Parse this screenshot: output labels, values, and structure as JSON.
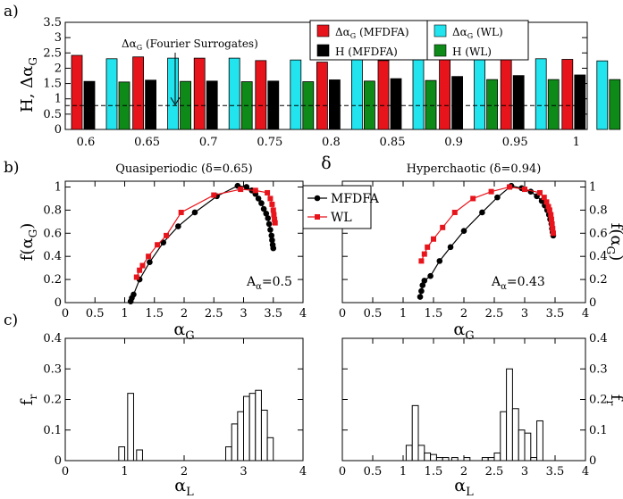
{
  "chart_data": [
    {
      "panel": "a)",
      "type": "bar",
      "xlabel": "δ",
      "ylabel": "H, Δα_G",
      "x_ticks": [
        "0.6",
        "0.65",
        "0.7",
        "0.75",
        "0.8",
        "0.85",
        "0.9",
        "0.95",
        "1"
      ],
      "y_ticks": [
        "0",
        "0.5",
        "1",
        "1.5",
        "2",
        "2.5",
        "3",
        "3.5"
      ],
      "ylim": [
        0,
        3.5
      ],
      "categories": [
        0.6,
        0.65,
        0.7,
        0.75,
        0.8,
        0.85,
        0.9,
        0.95,
        1.0
      ],
      "series": [
        {
          "name": "Δα_G (MFDFA)",
          "color": "#e8141b",
          "values": [
            2.42,
            2.37,
            2.33,
            2.25,
            2.2,
            2.25,
            2.31,
            2.31,
            2.29
          ]
        },
        {
          "name": "H (MFDFA)",
          "color": "#000000",
          "values": [
            1.57,
            1.61,
            1.58,
            1.58,
            1.62,
            1.66,
            1.73,
            1.76,
            1.78
          ]
        },
        {
          "name": "Δα_G (WL)",
          "color": "#22e4ee",
          "values": [
            2.31,
            2.33,
            2.33,
            2.27,
            2.33,
            2.31,
            2.31,
            2.31,
            2.24
          ]
        },
        {
          "name": "H (WL)",
          "color": "#0d8a18",
          "values": [
            1.55,
            1.57,
            1.56,
            1.56,
            1.58,
            1.6,
            1.63,
            1.63,
            1.63
          ]
        }
      ],
      "reference_line": {
        "y": 0.78,
        "style": "dashed"
      },
      "annotation": {
        "label": "Δα_G (Fourier Surrogates)",
        "target_x": 0.68,
        "target_y": 0.78
      }
    },
    {
      "panel": "b)",
      "type": "line",
      "title": "Quasiperiodic (δ=0.65)",
      "xlabel": "α_G",
      "ylabel": "f(α_G)",
      "xlim": [
        0,
        4
      ],
      "ylim": [
        0,
        1.05
      ],
      "x_ticks": [
        "0",
        "0.5",
        "1",
        "1.5",
        "2",
        "2.5",
        "3",
        "3.5",
        "4"
      ],
      "y_ticks": [
        "0",
        "0.2",
        "0.4",
        "0.6",
        "0.8",
        "1"
      ],
      "annotation": "A_α=0.5",
      "series": [
        {
          "name": "MFDFA",
          "color": "#000000",
          "marker": "circle",
          "points": [
            [
              1.1,
              0.01
            ],
            [
              1.12,
              0.04
            ],
            [
              1.15,
              0.07
            ],
            [
              1.25,
              0.2
            ],
            [
              1.42,
              0.35
            ],
            [
              1.65,
              0.52
            ],
            [
              1.9,
              0.66
            ],
            [
              2.18,
              0.78
            ],
            [
              2.55,
              0.92
            ],
            [
              2.9,
              1.01
            ],
            [
              3.05,
              1.0
            ],
            [
              3.14,
              0.97
            ],
            [
              3.2,
              0.94
            ],
            [
              3.25,
              0.9
            ],
            [
              3.3,
              0.86
            ],
            [
              3.34,
              0.81
            ],
            [
              3.38,
              0.77
            ],
            [
              3.41,
              0.73
            ],
            [
              3.43,
              0.68
            ],
            [
              3.45,
              0.63
            ],
            [
              3.47,
              0.58
            ],
            [
              3.48,
              0.54
            ],
            [
              3.49,
              0.5
            ],
            [
              3.5,
              0.47
            ]
          ]
        },
        {
          "name": "WL",
          "color": "#e8141b",
          "marker": "square",
          "points": [
            [
              1.2,
              0.22
            ],
            [
              1.25,
              0.28
            ],
            [
              1.3,
              0.32
            ],
            [
              1.4,
              0.4
            ],
            [
              1.55,
              0.5
            ],
            [
              1.7,
              0.58
            ],
            [
              1.95,
              0.78
            ],
            [
              2.5,
              0.93
            ],
            [
              2.95,
              0.98
            ],
            [
              3.2,
              0.97
            ],
            [
              3.4,
              0.95
            ],
            [
              3.45,
              0.9
            ],
            [
              3.48,
              0.85
            ],
            [
              3.5,
              0.8
            ],
            [
              3.51,
              0.76
            ],
            [
              3.52,
              0.72
            ],
            [
              3.53,
              0.69
            ]
          ]
        }
      ]
    },
    {
      "panel": "b2",
      "type": "line",
      "title": "Hyperchaotic (δ=0.94)",
      "xlabel": "α_G",
      "ylabel": "f(α_G)",
      "xlim": [
        0,
        4
      ],
      "ylim": [
        0,
        1.05
      ],
      "x_ticks": [
        "0",
        "0.5",
        "1",
        "1.5",
        "2",
        "2.5",
        "3",
        "3.5",
        "4"
      ],
      "y_ticks": [
        "0",
        "0.2",
        "0.4",
        "0.6",
        "0.8",
        "1"
      ],
      "annotation": "A_α=0.43",
      "legend": [
        "MFDFA",
        "WL"
      ],
      "series": [
        {
          "name": "MFDFA",
          "color": "#000000",
          "marker": "circle",
          "points": [
            [
              1.28,
              0.05
            ],
            [
              1.3,
              0.1
            ],
            [
              1.32,
              0.15
            ],
            [
              1.35,
              0.19
            ],
            [
              1.45,
              0.23
            ],
            [
              1.6,
              0.36
            ],
            [
              1.78,
              0.48
            ],
            [
              2.0,
              0.62
            ],
            [
              2.3,
              0.78
            ],
            [
              2.55,
              0.91
            ],
            [
              2.78,
              1.01
            ],
            [
              2.95,
              0.99
            ],
            [
              3.1,
              0.96
            ],
            [
              3.2,
              0.92
            ],
            [
              3.28,
              0.88
            ],
            [
              3.33,
              0.84
            ],
            [
              3.37,
              0.8
            ],
            [
              3.4,
              0.76
            ],
            [
              3.42,
              0.72
            ],
            [
              3.44,
              0.68
            ],
            [
              3.45,
              0.64
            ],
            [
              3.46,
              0.61
            ],
            [
              3.47,
              0.58
            ]
          ]
        },
        {
          "name": "WL",
          "color": "#e8141b",
          "marker": "square",
          "points": [
            [
              1.3,
              0.36
            ],
            [
              1.35,
              0.42
            ],
            [
              1.4,
              0.48
            ],
            [
              1.5,
              0.55
            ],
            [
              1.65,
              0.65
            ],
            [
              1.85,
              0.78
            ],
            [
              2.15,
              0.9
            ],
            [
              2.45,
              0.96
            ],
            [
              2.75,
              1.0
            ],
            [
              3.0,
              0.98
            ],
            [
              3.25,
              0.95
            ],
            [
              3.32,
              0.91
            ],
            [
              3.36,
              0.87
            ],
            [
              3.39,
              0.83
            ],
            [
              3.41,
              0.8
            ],
            [
              3.43,
              0.76
            ],
            [
              3.44,
              0.72
            ],
            [
              3.45,
              0.68
            ],
            [
              3.46,
              0.64
            ],
            [
              3.47,
              0.6
            ]
          ]
        }
      ]
    },
    {
      "panel": "c)",
      "type": "bar",
      "xlabel": "α_L",
      "ylabel": "f_r",
      "xlim": [
        0,
        4
      ],
      "ylim": [
        0,
        0.4
      ],
      "x_ticks": [
        "0",
        "1",
        "2",
        "3",
        "4"
      ],
      "y_ticks": [
        "0",
        "0.1",
        "0.2",
        "0.3",
        "0.4"
      ],
      "bin_width": 0.1,
      "bins": [
        [
          0.95,
          0.045
        ],
        [
          1.1,
          0.22
        ],
        [
          1.25,
          0.035
        ],
        [
          2.75,
          0.045
        ],
        [
          2.85,
          0.12
        ],
        [
          2.95,
          0.16
        ],
        [
          3.05,
          0.21
        ],
        [
          3.15,
          0.22
        ],
        [
          3.25,
          0.23
        ],
        [
          3.35,
          0.165
        ],
        [
          3.45,
          0.075
        ]
      ]
    },
    {
      "panel": "c2",
      "type": "bar",
      "xlabel": "α_L",
      "ylabel": "f_r",
      "xlim": [
        0,
        4
      ],
      "ylim": [
        0,
        0.4
      ],
      "x_ticks": [
        "0",
        "0.5",
        "1",
        "1.5",
        "2",
        "2.5",
        "3",
        "3.5",
        "4"
      ],
      "y_ticks": [
        "0",
        "0.1",
        "0.2",
        "0.3",
        "0.4"
      ],
      "bin_width": 0.1,
      "bins": [
        [
          1.1,
          0.05
        ],
        [
          1.2,
          0.18
        ],
        [
          1.3,
          0.05
        ],
        [
          1.4,
          0.025
        ],
        [
          1.5,
          0.02
        ],
        [
          1.6,
          0.01
        ],
        [
          1.7,
          0.01
        ],
        [
          1.85,
          0.01
        ],
        [
          2.05,
          0.01
        ],
        [
          2.35,
          0.01
        ],
        [
          2.45,
          0.01
        ],
        [
          2.55,
          0.025
        ],
        [
          2.65,
          0.16
        ],
        [
          2.75,
          0.3
        ],
        [
          2.85,
          0.17
        ],
        [
          2.95,
          0.1
        ],
        [
          3.05,
          0.09
        ],
        [
          3.15,
          0.01
        ],
        [
          3.25,
          0.13
        ]
      ]
    }
  ]
}
